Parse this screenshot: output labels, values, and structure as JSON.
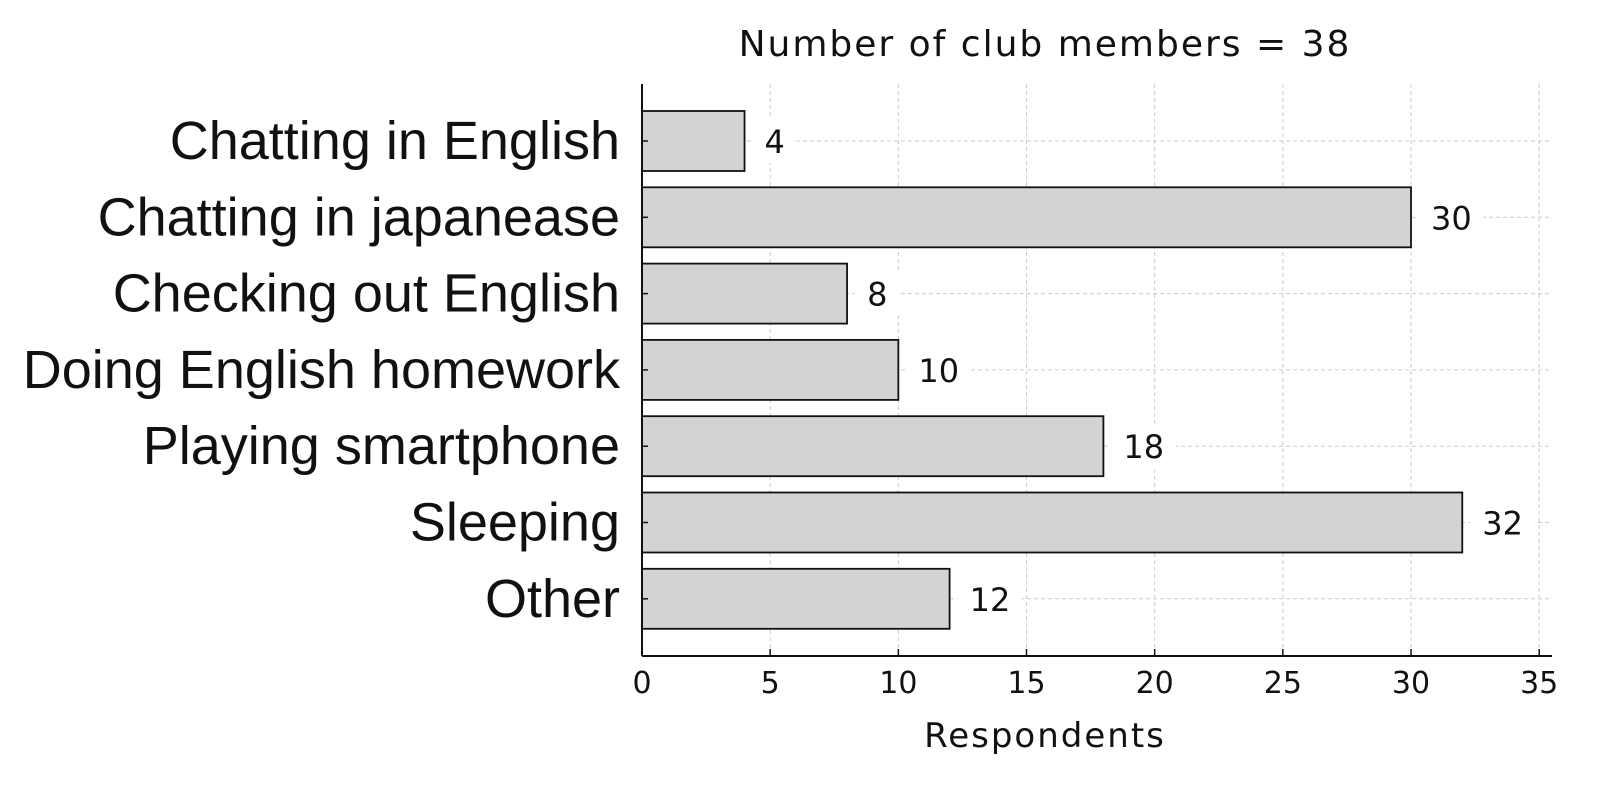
{
  "chart_data": {
    "type": "bar",
    "orientation": "horizontal",
    "title": "Number of club members = 38",
    "xlabel": "Respondents",
    "ylabel": "",
    "categories": [
      "Chatting in English",
      "Chatting in japanease",
      "Checking out English",
      "Doing English homework",
      "Playing smartphone",
      "Sleeping",
      "Other"
    ],
    "values": [
      4,
      30,
      8,
      10,
      18,
      32,
      12
    ],
    "xlim": [
      0,
      35.5
    ],
    "xticks": [
      0,
      5,
      10,
      15,
      20,
      25,
      30,
      35
    ],
    "grid": true,
    "data_labels": true,
    "colors": {
      "bar_fill": "#d3d3d3",
      "bar_stroke": "#111111",
      "grid": "#cccccc",
      "axis": "#111111"
    }
  }
}
